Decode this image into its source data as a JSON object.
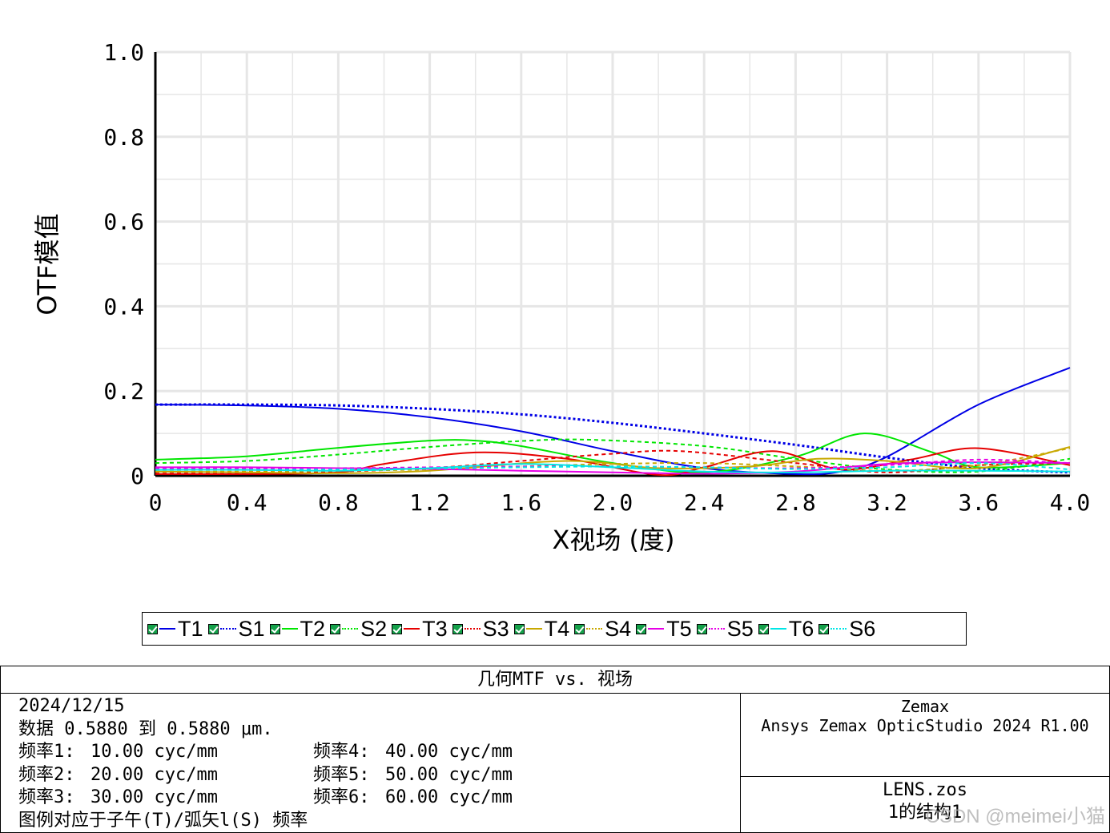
{
  "chart_data": {
    "type": "line",
    "title": "",
    "xlabel": "X视场 (度)",
    "ylabel": "OTF模值",
    "xlim": [
      0,
      4.0
    ],
    "ylim": [
      0,
      1.0
    ],
    "x_ticks": [
      "0",
      "0.4",
      "0.8",
      "1.2",
      "1.6",
      "2.0",
      "2.4",
      "2.8",
      "3.2",
      "3.6",
      "4.0"
    ],
    "y_ticks": [
      "0",
      "0.2",
      "0.4",
      "0.6",
      "0.8",
      "1.0"
    ],
    "grid": true,
    "legend_position": "bottom",
    "series": [
      {
        "name": "T1",
        "color": "#0000e6",
        "style": "solid",
        "x": [
          0,
          0.4,
          0.8,
          1.2,
          1.6,
          2.0,
          2.4,
          2.8,
          3.0,
          3.2,
          3.6,
          4.0
        ],
        "y": [
          0.168,
          0.166,
          0.158,
          0.138,
          0.105,
          0.058,
          0.018,
          0.004,
          0.01,
          0.045,
          0.168,
          0.255
        ]
      },
      {
        "name": "S1",
        "color": "#0000e6",
        "style": "dotted",
        "x": [
          0,
          0.4,
          0.8,
          1.2,
          1.6,
          2.0,
          2.4,
          2.8,
          3.2,
          3.6,
          4.0
        ],
        "y": [
          0.168,
          0.168,
          0.166,
          0.158,
          0.145,
          0.125,
          0.1,
          0.073,
          0.043,
          0.018,
          0.008
        ]
      },
      {
        "name": "T2",
        "color": "#00e600",
        "style": "solid",
        "x": [
          0,
          0.4,
          0.8,
          1.2,
          1.4,
          1.6,
          2.0,
          2.4,
          2.8,
          3.1,
          3.4,
          3.6,
          4.0
        ],
        "y": [
          0.038,
          0.046,
          0.066,
          0.083,
          0.083,
          0.07,
          0.03,
          0.008,
          0.045,
          0.1,
          0.055,
          0.02,
          0.03
        ]
      },
      {
        "name": "S2",
        "color": "#00e600",
        "style": "dashed",
        "x": [
          0,
          0.4,
          0.8,
          1.2,
          1.6,
          1.9,
          2.4,
          2.8,
          3.2,
          3.6,
          4.0
        ],
        "y": [
          0.03,
          0.035,
          0.05,
          0.068,
          0.082,
          0.085,
          0.07,
          0.04,
          0.015,
          0.01,
          0.04
        ]
      },
      {
        "name": "T3",
        "color": "#e60000",
        "style": "solid",
        "x": [
          0,
          0.4,
          0.8,
          1.0,
          1.4,
          1.8,
          2.2,
          2.4,
          2.7,
          3.0,
          3.3,
          3.6,
          4.0
        ],
        "y": [
          0.004,
          0.004,
          0.008,
          0.028,
          0.055,
          0.04,
          0.002,
          0.02,
          0.058,
          0.015,
          0.038,
          0.065,
          0.025
        ]
      },
      {
        "name": "S3",
        "color": "#e60000",
        "style": "dashed",
        "x": [
          0,
          0.4,
          0.8,
          1.2,
          1.6,
          2.0,
          2.3,
          2.8,
          3.2,
          3.6,
          4.0
        ],
        "y": [
          0.008,
          0.008,
          0.01,
          0.018,
          0.035,
          0.052,
          0.058,
          0.03,
          0.008,
          0.025,
          0.03
        ]
      },
      {
        "name": "T4",
        "color": "#c8a800",
        "style": "solid",
        "x": [
          0,
          0.4,
          0.8,
          1.2,
          1.8,
          2.2,
          2.6,
          2.9,
          3.2,
          3.6,
          4.0
        ],
        "y": [
          0.01,
          0.008,
          0.006,
          0.012,
          0.035,
          0.018,
          0.022,
          0.04,
          0.035,
          0.018,
          0.068
        ]
      },
      {
        "name": "S4",
        "color": "#c8a800",
        "style": "dashed",
        "x": [
          0,
          0.4,
          0.8,
          1.2,
          1.6,
          2.0,
          2.4,
          2.8,
          3.2,
          3.6,
          4.0
        ],
        "y": [
          0.01,
          0.01,
          0.012,
          0.015,
          0.022,
          0.028,
          0.03,
          0.022,
          0.012,
          0.025,
          0.065
        ]
      },
      {
        "name": "T5",
        "color": "#e600e6",
        "style": "solid",
        "x": [
          0,
          0.4,
          0.8,
          1.2,
          1.6,
          2.0,
          2.4,
          2.8,
          3.2,
          3.6,
          4.0
        ],
        "y": [
          0.02,
          0.02,
          0.018,
          0.016,
          0.012,
          0.008,
          0.005,
          0.01,
          0.028,
          0.032,
          0.03
        ]
      },
      {
        "name": "S5",
        "color": "#e600e6",
        "style": "dashed",
        "x": [
          0,
          0.4,
          0.8,
          1.2,
          1.6,
          2.0,
          2.4,
          2.8,
          3.2,
          3.6,
          4.0
        ],
        "y": [
          0.018,
          0.018,
          0.018,
          0.02,
          0.022,
          0.022,
          0.02,
          0.018,
          0.025,
          0.038,
          0.03
        ]
      },
      {
        "name": "T6",
        "color": "#00e6e6",
        "style": "solid",
        "x": [
          0,
          0.4,
          0.8,
          1.2,
          1.6,
          2.0,
          2.4,
          2.8,
          3.2,
          3.6,
          4.0
        ],
        "y": [
          0.014,
          0.014,
          0.012,
          0.018,
          0.028,
          0.02,
          0.01,
          0.008,
          0.012,
          0.012,
          0.01
        ]
      },
      {
        "name": "S6",
        "color": "#00e6e6",
        "style": "dashed",
        "x": [
          0,
          0.4,
          0.8,
          1.2,
          1.6,
          2.0,
          2.4,
          2.8,
          3.2,
          3.6,
          4.0
        ],
        "y": [
          0.014,
          0.014,
          0.015,
          0.017,
          0.02,
          0.022,
          0.02,
          0.016,
          0.02,
          0.03,
          0.015
        ]
      }
    ]
  },
  "info": {
    "title": "几何MTF vs. 视场",
    "date": "2024/12/15",
    "data_range": "数据 0.5880 到 0.5880 μm.",
    "freq_rows": [
      {
        "l_label": "频率1:",
        "l_value": "10.00 cyc/mm",
        "r_label": "频率4:",
        "r_value": "40.00 cyc/mm"
      },
      {
        "l_label": "频率2:",
        "l_value": "20.00 cyc/mm",
        "r_label": "频率5:",
        "r_value": "50.00 cyc/mm"
      },
      {
        "l_label": "频率3:",
        "l_value": "30.00 cyc/mm",
        "r_label": "频率6:",
        "r_value": "60.00 cyc/mm"
      }
    ],
    "legend_note": "图例对应于子午(T)/弧矢l(S) 频率",
    "company": "Zemax",
    "software": "Ansys Zemax OpticStudio 2024 R1.00",
    "file": "LENS.zos",
    "config": "1的结构1"
  },
  "watermark": "CSDN @meimei小猫"
}
